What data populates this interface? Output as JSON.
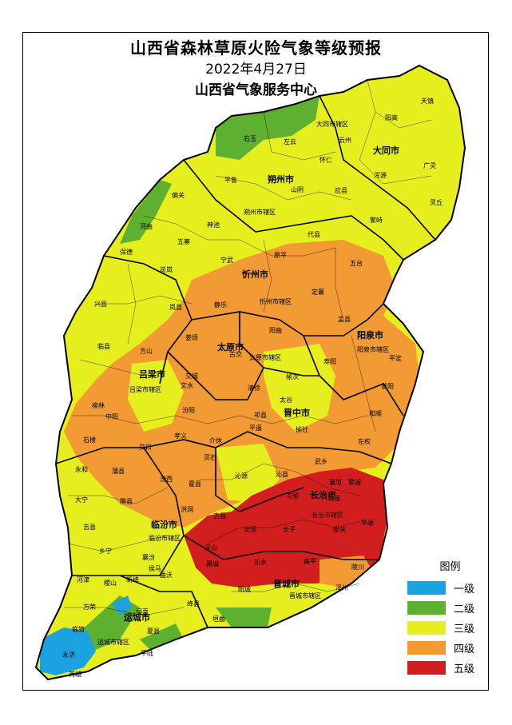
{
  "header": {
    "title": "山西省森林草原火险气象等级预报",
    "date": "2022年4月27日",
    "org": "山西省气象服务中心"
  },
  "legend": {
    "title": "图例",
    "items": [
      {
        "label": "一级",
        "color": "#1ba2e0"
      },
      {
        "label": "二级",
        "color": "#5db030"
      },
      {
        "label": "三级",
        "color": "#e6ee1e"
      },
      {
        "label": "四级",
        "color": "#f29a34"
      },
      {
        "label": "五级",
        "color": "#d21e1e"
      }
    ]
  },
  "cities": [
    "大同市",
    "朔州市",
    "忻州市",
    "阳泉市",
    "太原市",
    "吕梁市",
    "晋中市",
    "长治市",
    "临汾市",
    "晋城市",
    "运城市"
  ],
  "counties": [
    "天镇",
    "阳高",
    "大同市辖区",
    "云州",
    "广灵",
    "灵丘",
    "浑源",
    "右玉",
    "左云",
    "怀仁",
    "平鲁",
    "山阴",
    "应县",
    "朔州市辖区",
    "繁峙",
    "偏关",
    "河曲",
    "五寨",
    "神池",
    "宁武",
    "代县",
    "原平",
    "五台",
    "保德",
    "岢岚",
    "静乐",
    "忻州市辖区",
    "定襄",
    "兴县",
    "岚县",
    "娄烦",
    "阳曲",
    "盂县",
    "临县",
    "方山",
    "古交",
    "太原市辖区",
    "阳泉市辖区",
    "平定",
    "寿阳",
    "交城",
    "清徐",
    "昔阳",
    "吕梁市辖区",
    "文水",
    "榆次",
    "太谷",
    "和顺",
    "柳林",
    "中阳",
    "汾阳",
    "祁县",
    "榆社",
    "左权",
    "石楼",
    "孝义",
    "介休",
    "平遥",
    "武乡",
    "交口",
    "灵石",
    "沁县",
    "襄垣",
    "黎城",
    "永和",
    "蒲县",
    "汾西",
    "霍县",
    "沁源",
    "屯留",
    "潞城",
    "大宁",
    "隰县",
    "洪洞",
    "古县",
    "安泽",
    "长治市辖区",
    "壶关",
    "平顺",
    "吉县",
    "乡宁",
    "临汾市辖区",
    "浮山",
    "长子",
    "高平",
    "陵川",
    "乡宁",
    "襄汾",
    "翼城",
    "沁水",
    "阳城",
    "晋城市辖区",
    "河津",
    "稷山",
    "新绛",
    "曲沃",
    "侯马",
    "绛县",
    "泽州",
    "万荣",
    "闻喜",
    "垣曲",
    "临猗",
    "运城市辖区",
    "夏县",
    "永济",
    "平陆",
    "芮城"
  ]
}
